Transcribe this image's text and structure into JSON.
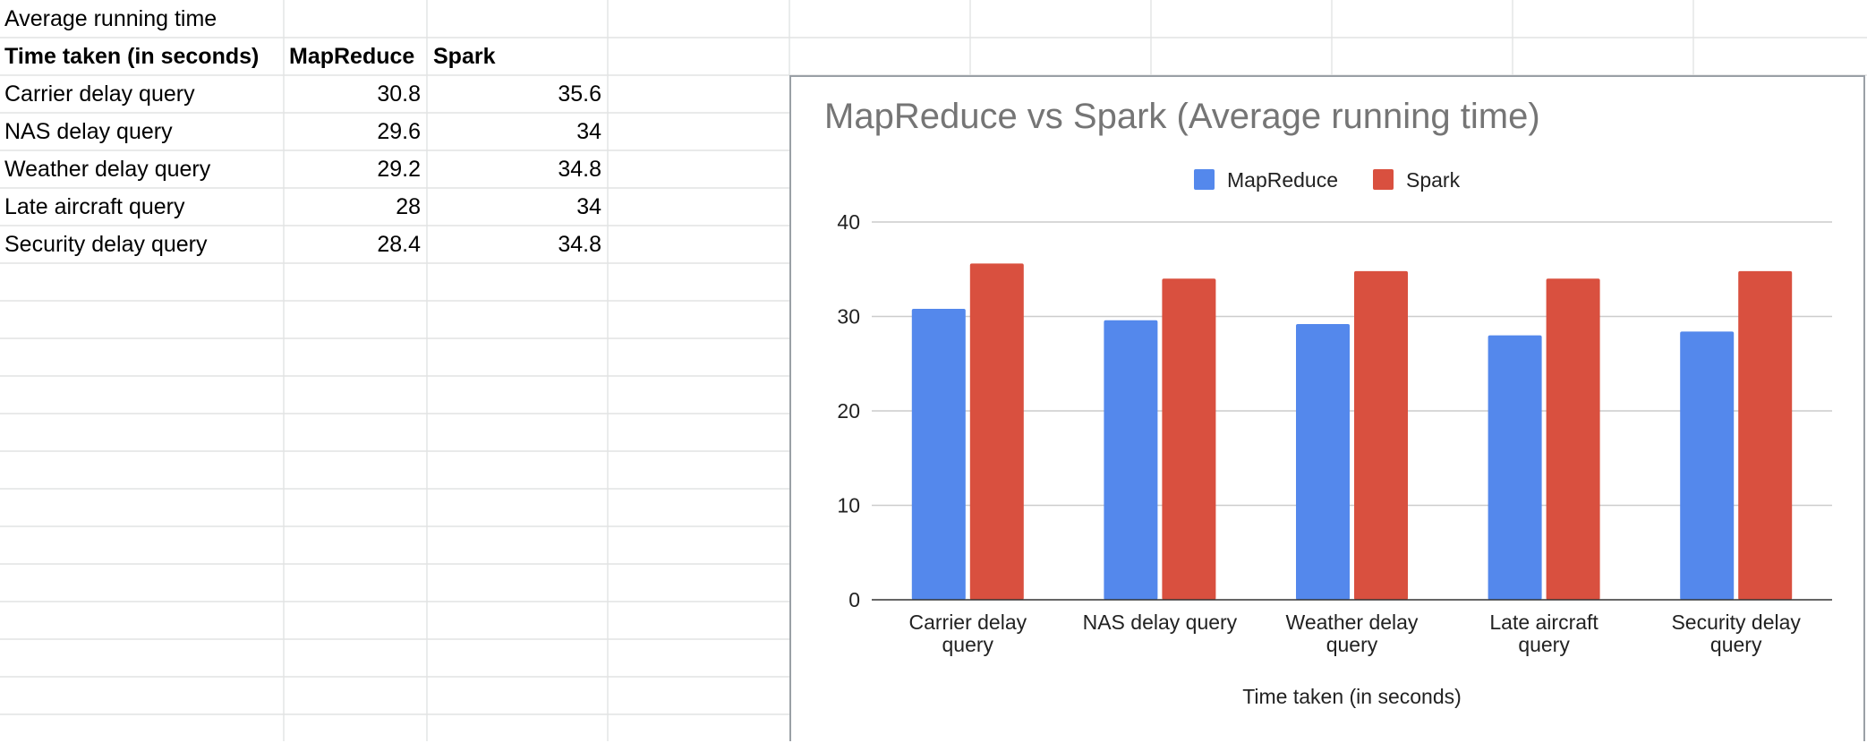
{
  "sheet": {
    "title_cell": "Average running time",
    "header": [
      "Time taken (in seconds)",
      "MapReduce",
      "Spark"
    ],
    "rows": [
      {
        "label": "Carrier delay query",
        "mapreduce": "30.8",
        "spark": "35.6"
      },
      {
        "label": "NAS delay query",
        "mapreduce": "29.6",
        "spark": "34"
      },
      {
        "label": "Weather delay query",
        "mapreduce": "29.2",
        "spark": "34.8"
      },
      {
        "label": "Late aircraft query",
        "mapreduce": "28",
        "spark": "34"
      },
      {
        "label": "Security delay query",
        "mapreduce": "28.4",
        "spark": "34.8"
      }
    ]
  },
  "chart_data": {
    "type": "bar",
    "title": "MapReduce vs Spark (Average running time)",
    "xlabel": "Time taken (in seconds)",
    "ylabel": "",
    "categories": [
      [
        "Carrier delay",
        "query"
      ],
      [
        "NAS delay query"
      ],
      [
        "Weather delay",
        "query"
      ],
      [
        "Late aircraft",
        "query"
      ],
      [
        "Security delay",
        "query"
      ]
    ],
    "series": [
      {
        "name": "MapReduce",
        "color": "#5488ec",
        "values": [
          30.8,
          29.6,
          29.2,
          28,
          28.4
        ]
      },
      {
        "name": "Spark",
        "color": "#d9503f",
        "values": [
          35.6,
          34,
          34.8,
          34,
          34.8
        ]
      }
    ],
    "ylim": [
      0,
      40
    ],
    "yticks": [
      0,
      10,
      20,
      30,
      40
    ],
    "grid": true,
    "legend_position": "top"
  }
}
